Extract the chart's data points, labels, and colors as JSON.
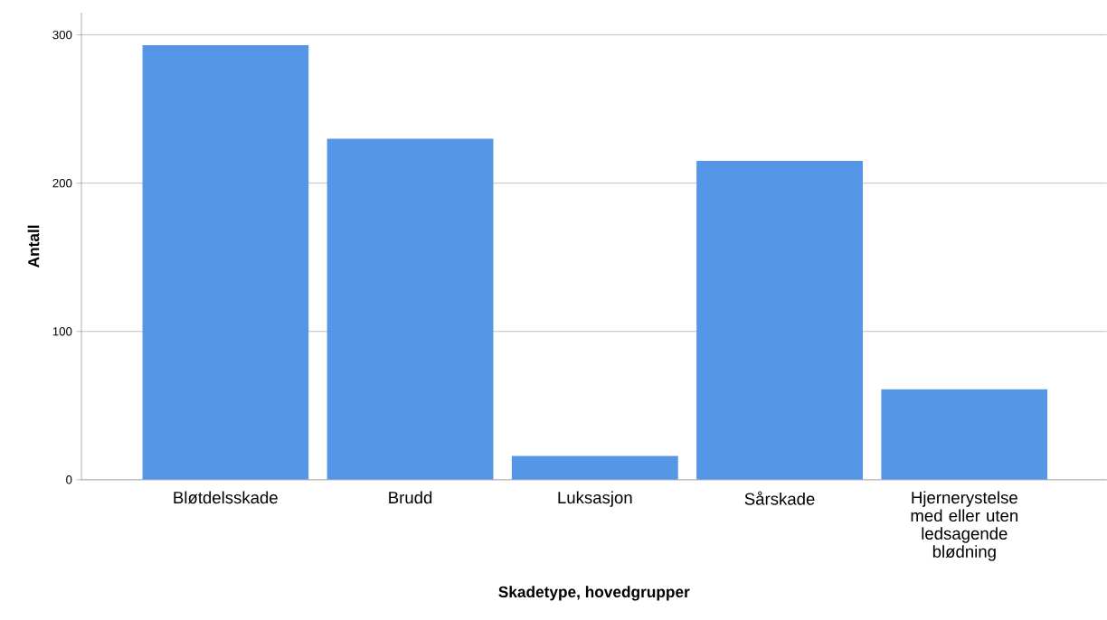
{
  "chart_data": {
    "type": "bar",
    "xlabel": "Skadetype, hovedgrupper",
    "ylabel": "Antall",
    "categories": [
      "Bløtdelsskade",
      "Brudd",
      "Luksasjon",
      "Sårskade",
      "Hjernerystelse med eller uten ledsagende blødning"
    ],
    "values": [
      293,
      230,
      16,
      215,
      61
    ],
    "color": "#5596e6",
    "ylim": [
      0,
      315
    ],
    "yticks": [
      0,
      100,
      200,
      300
    ],
    "grid": "y"
  }
}
